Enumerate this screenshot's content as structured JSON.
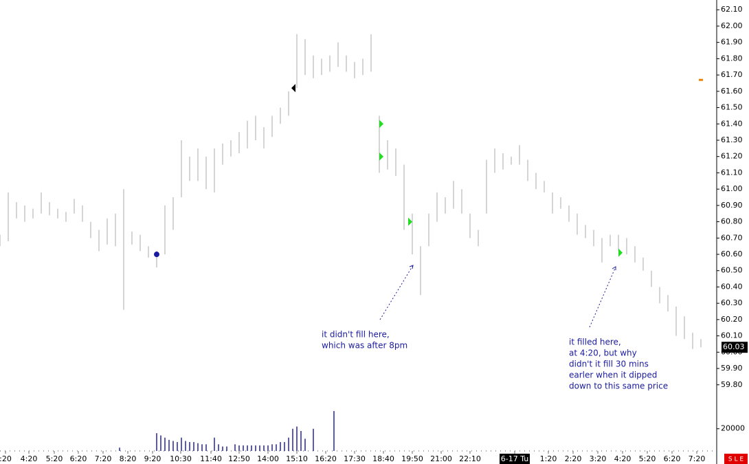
{
  "chart_data": {
    "type": "ohlc",
    "x": [
      0,
      12,
      24,
      36,
      48,
      60,
      72,
      84,
      96,
      108,
      120,
      132,
      144,
      156,
      168,
      180,
      192,
      204,
      216,
      228,
      240,
      252,
      264,
      276,
      288,
      300,
      312,
      324,
      336,
      348,
      360,
      372,
      384,
      396,
      408,
      420,
      432,
      444,
      456,
      468,
      480,
      492,
      504,
      516,
      528,
      540,
      552,
      564,
      576,
      588,
      600,
      612,
      624,
      636,
      648,
      660,
      672,
      684,
      696,
      708,
      720,
      732,
      744,
      756,
      768,
      780,
      792,
      804,
      816,
      828,
      840,
      852,
      864,
      876,
      888,
      900,
      912,
      924,
      936,
      948,
      960,
      972,
      984,
      996,
      1008,
      1020
    ],
    "series": [
      {
        "color": "#b8b8b8",
        "high": [
          60.72,
          60.98,
          60.92,
          60.9,
          60.88,
          60.98,
          60.92,
          60.88,
          60.86,
          60.94,
          60.9,
          60.8,
          60.75,
          60.82,
          60.85,
          61.0,
          60.74,
          60.72,
          60.65,
          60.62,
          60.9,
          60.95,
          61.3,
          61.2,
          61.25,
          61.2,
          61.25,
          61.28,
          61.3,
          61.35,
          61.42,
          61.45,
          61.38,
          61.45,
          61.5,
          61.6,
          61.95,
          61.92,
          61.82,
          61.8,
          61.82,
          61.9,
          61.82,
          61.78,
          61.8,
          61.95,
          61.45,
          61.3,
          61.25,
          61.15,
          60.85,
          60.65,
          60.85,
          60.98,
          60.95,
          61.05,
          61.0,
          60.85,
          60.75,
          61.18,
          61.25,
          61.22,
          61.2,
          61.27,
          61.18,
          61.1,
          61.05,
          60.98,
          60.95,
          60.9,
          60.85,
          60.78,
          60.75,
          60.7,
          60.72,
          60.72,
          60.7,
          60.65,
          60.58,
          60.5,
          60.4,
          60.35,
          60.28,
          60.22,
          60.12,
          60.08
        ],
        "low": [
          60.65,
          60.68,
          60.82,
          60.8,
          60.82,
          60.85,
          60.84,
          60.82,
          60.8,
          60.85,
          60.8,
          60.7,
          60.62,
          60.66,
          60.65,
          60.26,
          60.66,
          60.62,
          60.58,
          60.52,
          60.6,
          60.75,
          60.95,
          61.05,
          61.05,
          61.0,
          60.98,
          61.15,
          61.2,
          61.22,
          61.25,
          61.3,
          61.25,
          61.32,
          61.4,
          61.45,
          61.62,
          61.7,
          61.68,
          61.7,
          61.72,
          61.75,
          61.72,
          61.68,
          61.7,
          61.72,
          61.1,
          61.12,
          61.08,
          60.75,
          60.6,
          60.35,
          60.65,
          60.8,
          60.85,
          60.88,
          60.85,
          60.7,
          60.65,
          60.85,
          61.1,
          61.12,
          61.15,
          61.15,
          61.05,
          61.0,
          60.98,
          60.85,
          60.88,
          60.8,
          60.72,
          60.7,
          60.65,
          60.55,
          60.65,
          60.62,
          60.6,
          60.55,
          60.5,
          60.4,
          60.3,
          60.25,
          60.1,
          60.08,
          60.02,
          60.03
        ]
      }
    ],
    "volume": {
      "color": "#00008b",
      "x": [
        174,
        228,
        234,
        240,
        246,
        252,
        258,
        264,
        270,
        276,
        282,
        288,
        294,
        300,
        312,
        318,
        324,
        330,
        342,
        348,
        354,
        360,
        366,
        372,
        378,
        384,
        390,
        396,
        402,
        408,
        414,
        420,
        426,
        432,
        438,
        444,
        456,
        486
      ],
      "values": [
        3000,
        16000,
        14000,
        12000,
        10000,
        9000,
        8000,
        12000,
        9000,
        8000,
        8000,
        7000,
        6000,
        6000,
        12000,
        6000,
        4000,
        4000,
        6000,
        5000,
        5000,
        5000,
        5000,
        5000,
        5000,
        5000,
        5000,
        6000,
        6000,
        8000,
        8000,
        12000,
        20000,
        22000,
        18000,
        11000,
        20000,
        36000
      ],
      "ylim": [
        0,
        44000
      ],
      "yticks": [
        20000
      ]
    },
    "xlim": [
      0,
      1043
    ],
    "xticks": [
      {
        "value": 8,
        "label": ":20"
      },
      {
        "value": 42,
        "label": "4:20"
      },
      {
        "value": 79,
        "label": "5:20"
      },
      {
        "value": 114,
        "label": "6:20"
      },
      {
        "value": 150,
        "label": "7:20"
      },
      {
        "value": 186,
        "label": "8:20"
      },
      {
        "value": 222,
        "label": "9:20"
      },
      {
        "value": 263,
        "label": "10:30"
      },
      {
        "value": 307,
        "label": "11:40"
      },
      {
        "value": 348,
        "label": "12:50"
      },
      {
        "value": 390,
        "label": "14:00"
      },
      {
        "value": 432,
        "label": "15:10"
      },
      {
        "value": 474,
        "label": "16:20"
      },
      {
        "value": 516,
        "label": "17:30"
      },
      {
        "value": 558,
        "label": "18:40"
      },
      {
        "value": 600,
        "label": "19:50"
      },
      {
        "value": 642,
        "label": "21:00"
      },
      {
        "value": 684,
        "label": "22:10"
      },
      {
        "value": 749,
        "label": "6-17 Tu"
      },
      {
        "value": 798,
        "label": "1:20"
      },
      {
        "value": 834,
        "label": "2:20"
      },
      {
        "value": 870,
        "label": "3:20"
      },
      {
        "value": 906,
        "label": "4:20"
      },
      {
        "value": 942,
        "label": "5:20"
      },
      {
        "value": 978,
        "label": "6:20"
      },
      {
        "value": 1014,
        "label": "7:20"
      }
    ],
    "ylim": [
      59.74,
      62.16
    ],
    "yticks": [
      {
        "value": 59.8,
        "label": "59.80"
      },
      {
        "value": 59.9,
        "label": "59.90"
      },
      {
        "value": 60,
        "label": "60.00"
      },
      {
        "value": 60.1,
        "label": "60.10"
      },
      {
        "value": 60.2,
        "label": "60.20"
      },
      {
        "value": 60.3,
        "label": "60.30"
      },
      {
        "value": 60.4,
        "label": "60.40"
      },
      {
        "value": 60.5,
        "label": "60.50"
      },
      {
        "value": 60.6,
        "label": "60.60"
      },
      {
        "value": 60.7,
        "label": "60.70"
      },
      {
        "value": 60.8,
        "label": "60.80"
      },
      {
        "value": 60.9,
        "label": "60.90"
      },
      {
        "value": 61,
        "label": "61.00"
      },
      {
        "value": 61.1,
        "label": "61.10"
      },
      {
        "value": 61.2,
        "label": "61.20"
      },
      {
        "value": 61.3,
        "label": "61.30"
      },
      {
        "value": 61.4,
        "label": "61.40"
      },
      {
        "value": 61.5,
        "label": "61.50"
      },
      {
        "value": 61.6,
        "label": "61.60"
      },
      {
        "value": 61.7,
        "label": "61.70"
      },
      {
        "value": 61.8,
        "label": "61.80"
      },
      {
        "value": 61.9,
        "label": "61.90"
      },
      {
        "value": 62,
        "label": "62.00"
      },
      {
        "value": 62.1,
        "label": "62.10"
      }
    ],
    "last_price": 60.03,
    "markers": [
      {
        "x": 228,
        "y": 60.6,
        "shape": "circle",
        "color": "#1a1aa0"
      },
      {
        "x": 428,
        "y": 61.62,
        "shape": "left",
        "color": "#000000"
      },
      {
        "x": 554,
        "y": 61.4,
        "shape": "right",
        "color": "#22dd22"
      },
      {
        "x": 554,
        "y": 61.2,
        "shape": "right",
        "color": "#22dd22"
      },
      {
        "x": 596,
        "y": 60.8,
        "shape": "right",
        "color": "#22dd22"
      },
      {
        "x": 902,
        "y": 60.61,
        "shape": "right",
        "color": "#22dd22"
      },
      {
        "x": 1020,
        "y": 61.67,
        "shape": "dash",
        "color": "#f08000"
      }
    ],
    "annotations": [
      [
        "it didn't fill here,",
        "which was after 8pm"
      ],
      [
        "it filled here,",
        "at 4:20, but why",
        "didn't it fill 30 mins",
        "earler when it dipped",
        "down to this same price"
      ]
    ],
    "badge": "S L E"
  }
}
